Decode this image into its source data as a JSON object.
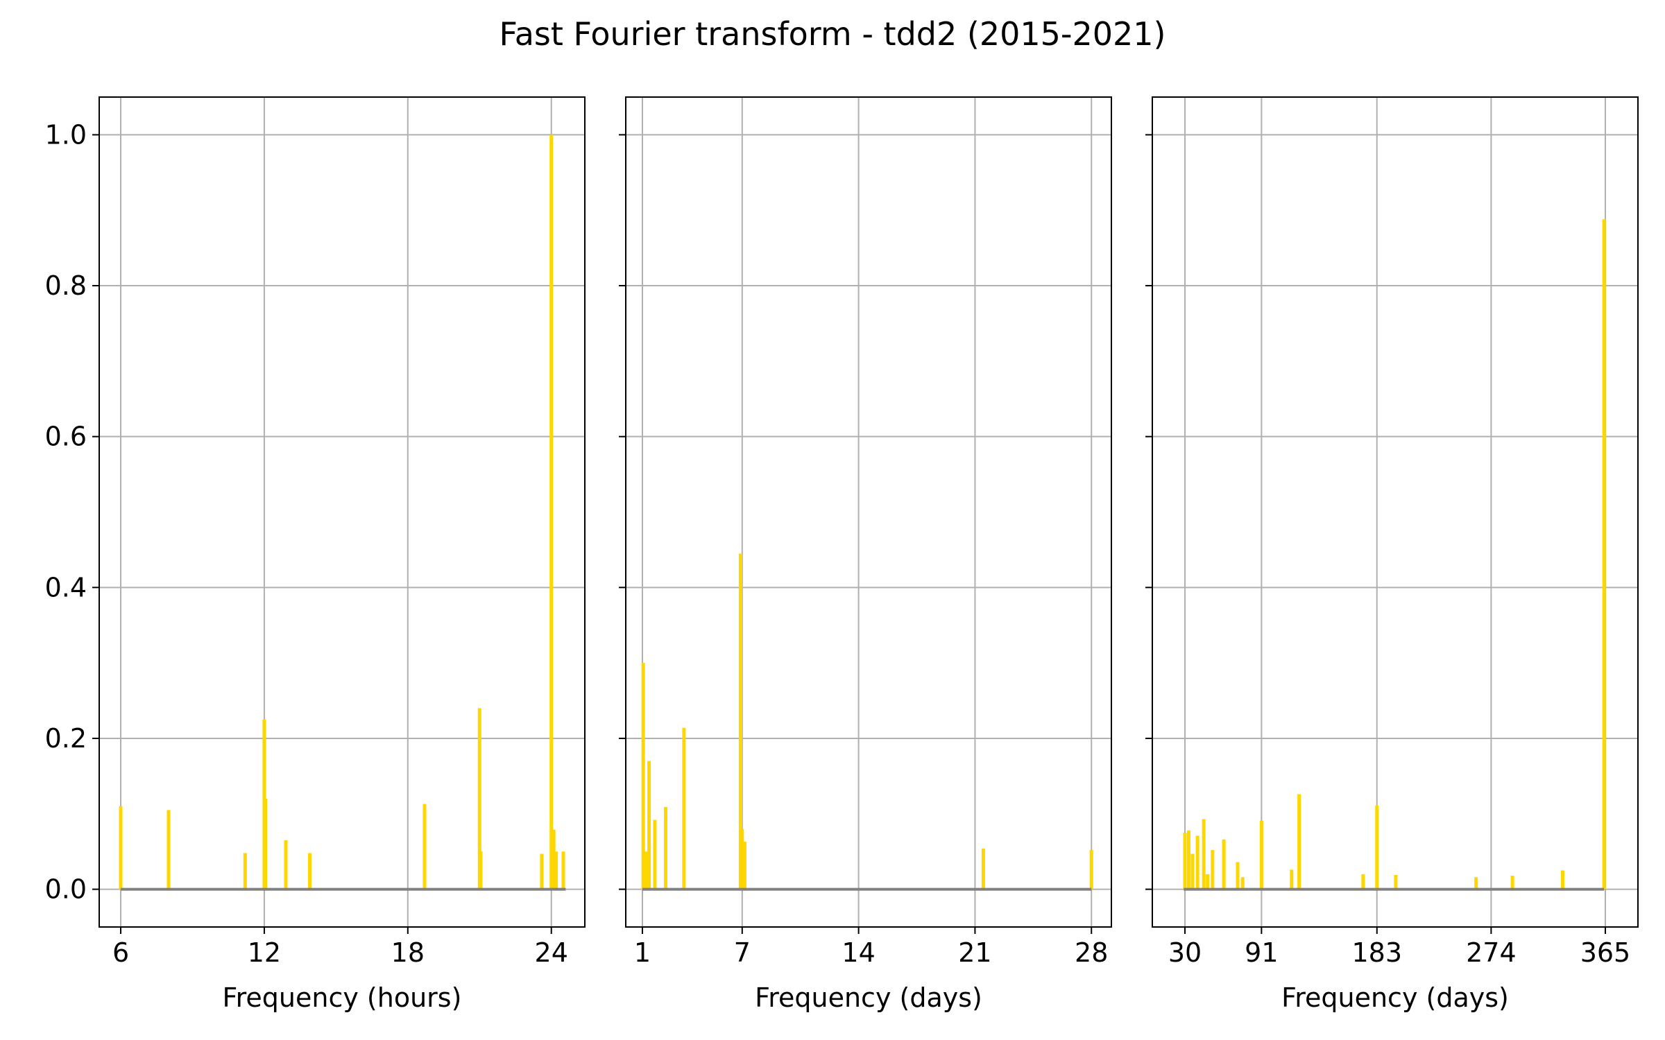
{
  "title": "Fast Fourier transform - tdd2 (2015-2021)",
  "colors": {
    "bar": "#FFD700",
    "baseline": "#808080",
    "grid": "#b0b0b0",
    "frame": "#000000"
  },
  "chart_data": [
    {
      "type": "bar",
      "xlabel": "Frequency (hours)",
      "xlim": [
        5.1,
        25.4
      ],
      "ylim": [
        -0.05,
        1.05
      ],
      "xticks": [
        6,
        12,
        18,
        24
      ],
      "xtick_labels": [
        "6",
        "12",
        "18",
        "24"
      ],
      "yticks": [
        0.0,
        0.2,
        0.4,
        0.6,
        0.8,
        1.0
      ],
      "ytick_labels": [
        "0.0",
        "0.2",
        "0.4",
        "0.6",
        "0.8",
        "1.0"
      ],
      "grid": true,
      "baseline": [
        6,
        24.6
      ],
      "x": [
        6.0,
        8.0,
        11.2,
        12.0,
        12.05,
        12.9,
        13.9,
        18.7,
        21.0,
        21.05,
        23.6,
        24.0,
        24.1,
        24.2,
        24.5
      ],
      "values": [
        0.11,
        0.105,
        0.048,
        0.225,
        0.12,
        0.065,
        0.048,
        0.113,
        0.24,
        0.05,
        0.047,
        1.0,
        0.079,
        0.05,
        0.05
      ]
    },
    {
      "type": "bar",
      "xlabel": "Frequency (days)",
      "xlim": [
        0.0,
        29.2
      ],
      "ylim": [
        -0.05,
        1.05
      ],
      "xticks": [
        1,
        7,
        14,
        21,
        28
      ],
      "xtick_labels": [
        "1",
        "7",
        "14",
        "21",
        "28"
      ],
      "yticks": [
        0.0,
        0.2,
        0.4,
        0.6,
        0.8,
        1.0
      ],
      "ytick_labels": [
        "",
        "",
        "",
        "",
        "",
        ""
      ],
      "grid": true,
      "baseline": [
        1,
        28
      ],
      "x": [
        1.05,
        1.2,
        1.4,
        1.75,
        2.4,
        3.5,
        6.9,
        7.0,
        7.15,
        21.5,
        28.0
      ],
      "values": [
        0.3,
        0.05,
        0.17,
        0.092,
        0.109,
        0.214,
        0.445,
        0.08,
        0.063,
        0.054,
        0.052
      ]
    },
    {
      "type": "bar",
      "xlabel": "Frequency (days)",
      "xlim": [
        4.0,
        391.0
      ],
      "ylim": [
        -0.05,
        1.05
      ],
      "xticks": [
        30,
        91,
        183,
        274,
        365
      ],
      "xtick_labels": [
        "30",
        "91",
        "183",
        "274",
        "365"
      ],
      "yticks": [
        0.0,
        0.2,
        0.4,
        0.6,
        0.8,
        1.0
      ],
      "ytick_labels": [
        "",
        "",
        "",
        "",
        "",
        ""
      ],
      "grid": true,
      "baseline": [
        29,
        364
      ],
      "x": [
        30,
        33,
        36,
        40,
        45,
        48,
        52,
        61,
        72,
        76,
        91,
        115,
        121,
        172,
        183,
        198,
        262,
        291,
        331,
        364
      ],
      "values": [
        0.075,
        0.078,
        0.047,
        0.071,
        0.093,
        0.02,
        0.052,
        0.066,
        0.036,
        0.016,
        0.091,
        0.026,
        0.126,
        0.02,
        0.111,
        0.019,
        0.016,
        0.018,
        0.025,
        0.888
      ]
    }
  ]
}
